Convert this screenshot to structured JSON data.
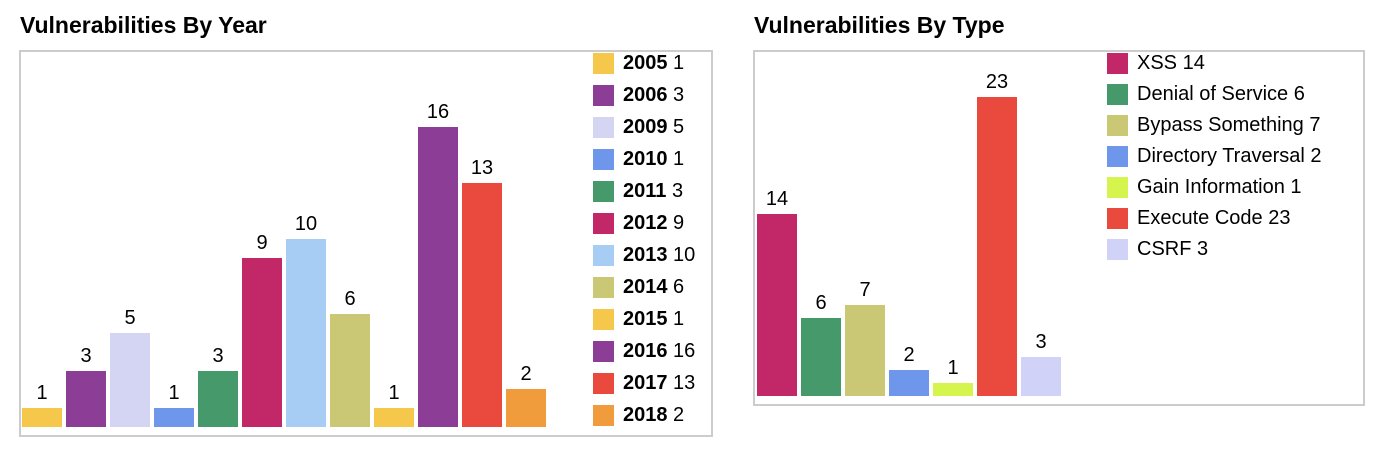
{
  "page": {
    "background": "#ffffff",
    "panel_border_color": "#cccccc"
  },
  "chart_data": [
    {
      "type": "bar",
      "title": "Vulnerabilities By Year",
      "categories": [
        "2005",
        "2006",
        "2009",
        "2010",
        "2011",
        "2012",
        "2013",
        "2014",
        "2015",
        "2016",
        "2017",
        "2018"
      ],
      "values": [
        1,
        3,
        5,
        1,
        3,
        9,
        10,
        6,
        1,
        16,
        13,
        2
      ],
      "colors": [
        "#f5c74b",
        "#8c3d96",
        "#d4d5f3",
        "#6e96ea",
        "#45996b",
        "#c22767",
        "#a8cdf5",
        "#cac874",
        "#f5c74b",
        "#8c3d96",
        "#ea4a3d",
        "#f09c3c"
      ],
      "legend_entries": [
        "2005 1",
        "2006 3",
        "2009 5",
        "2010 1",
        "2011 3",
        "2012 9",
        "2013 10",
        "2014 6",
        "2015 1",
        "2016 16",
        "2017 13",
        "2018 2"
      ],
      "xlabel": "",
      "ylabel": "",
      "ylim": [
        0,
        16
      ],
      "grid": false,
      "bar_value_labels": true,
      "legend_position": "inside-top-right",
      "category_axis_labels_visible": false
    },
    {
      "type": "bar",
      "title": "Vulnerabilities By Type",
      "categories": [
        "XSS",
        "Denial of Service",
        "Bypass Something",
        "Directory Traversal",
        "Gain Information",
        "Execute Code",
        "CSRF"
      ],
      "values": [
        14,
        6,
        7,
        2,
        1,
        23,
        3
      ],
      "colors": [
        "#c22767",
        "#45996b",
        "#cac874",
        "#6e96ea",
        "#d6f44e",
        "#ea4a3d",
        "#d0d3f7"
      ],
      "legend_entries": [
        "XSS 14",
        "Denial of Service 6",
        "Bypass Something 7",
        "Directory Traversal 2",
        "Gain Information 1",
        "Execute Code 23",
        "CSRF 3"
      ],
      "xlabel": "",
      "ylabel": "",
      "ylim": [
        0,
        23
      ],
      "grid": false,
      "bar_value_labels": true,
      "legend_position": "inside-top-right",
      "category_axis_labels_visible": false
    }
  ]
}
